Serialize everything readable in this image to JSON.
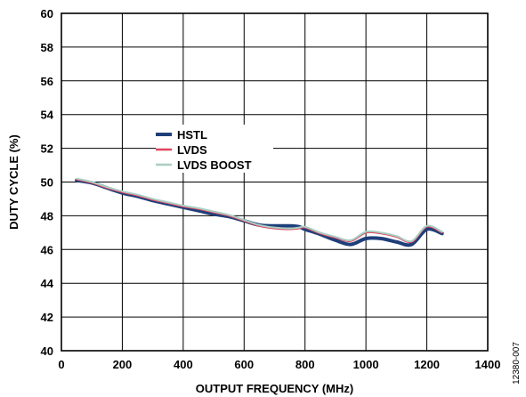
{
  "chart_data": {
    "type": "line",
    "xlabel": "OUTPUT FREQUENCY (MHz)",
    "ylabel": "DUTY CYCLE (%)",
    "xlim": [
      0,
      1400
    ],
    "ylim": [
      40,
      60
    ],
    "xticks": [
      0,
      200,
      400,
      600,
      800,
      1000,
      1200,
      1400
    ],
    "yticks": [
      40,
      42,
      44,
      46,
      48,
      50,
      52,
      54,
      56,
      58,
      60
    ],
    "grid": true,
    "legend_position": "upper-left-center",
    "figure_id": "12380-007",
    "series": [
      {
        "name": "HSTL",
        "color": "#1f3f7a",
        "width": 4,
        "x": [
          50,
          100,
          150,
          200,
          250,
          300,
          350,
          400,
          450,
          500,
          550,
          600,
          650,
          700,
          750,
          780,
          800,
          850,
          900,
          950,
          1000,
          1050,
          1100,
          1150,
          1200,
          1250
        ],
        "values": [
          50.1,
          49.95,
          49.65,
          49.35,
          49.15,
          48.9,
          48.7,
          48.5,
          48.3,
          48.1,
          47.95,
          47.7,
          47.45,
          47.4,
          47.4,
          47.35,
          47.2,
          46.9,
          46.55,
          46.3,
          46.65,
          46.65,
          46.45,
          46.3,
          47.2,
          46.95
        ]
      },
      {
        "name": "LVDS",
        "color": "#e0455c",
        "width": 2,
        "x": [
          50,
          100,
          150,
          200,
          250,
          300,
          350,
          400,
          450,
          500,
          550,
          600,
          650,
          700,
          750,
          780,
          800,
          850,
          900,
          950,
          1000,
          1050,
          1100,
          1150,
          1200,
          1250
        ],
        "values": [
          50.15,
          49.95,
          49.65,
          49.4,
          49.2,
          48.95,
          48.75,
          48.55,
          48.4,
          48.2,
          48.0,
          47.7,
          47.4,
          47.25,
          47.2,
          47.25,
          47.3,
          46.95,
          46.7,
          46.5,
          47.0,
          46.95,
          46.75,
          46.45,
          47.35,
          47.0
        ]
      },
      {
        "name": "LVDS BOOST",
        "color": "#a9cec4",
        "width": 2,
        "x": [
          50,
          100,
          150,
          200,
          250,
          300,
          350,
          400,
          450,
          500,
          550,
          600,
          650,
          700,
          750,
          780,
          800,
          850,
          900,
          950,
          1000,
          1050,
          1100,
          1150,
          1200,
          1250
        ],
        "values": [
          50.2,
          50.0,
          49.7,
          49.45,
          49.25,
          49.0,
          48.8,
          48.6,
          48.45,
          48.25,
          48.05,
          47.75,
          47.45,
          47.3,
          47.25,
          47.3,
          47.35,
          47.0,
          46.75,
          46.55,
          47.05,
          47.0,
          46.8,
          46.5,
          47.4,
          47.05
        ]
      }
    ]
  }
}
